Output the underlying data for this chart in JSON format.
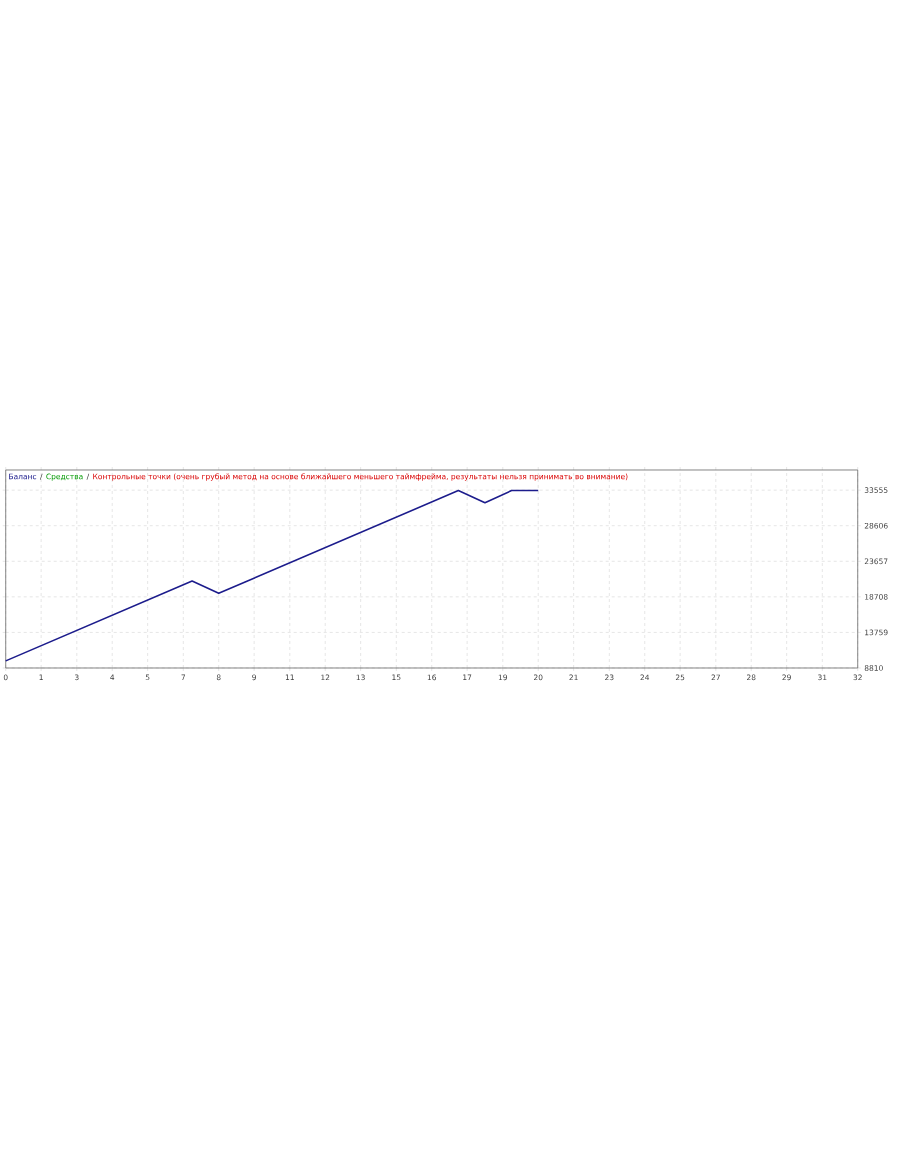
{
  "chart_data": {
    "type": "line",
    "x": [
      0,
      7,
      8,
      17,
      18,
      19,
      20
    ],
    "series": [
      {
        "name": "Баланс",
        "color": "#1c1c8c",
        "values": [
          9800,
          20900,
          19200,
          33500,
          31800,
          33500,
          33500
        ]
      }
    ],
    "annotations": [
      "/",
      "Средства",
      "/",
      "Контрольные точки (очень грубый метод на основе ближайшего меньшего таймфрейма, результаты нельзя принимать во внимание)"
    ],
    "xlim": [
      0,
      32
    ],
    "xticks": [
      0,
      {
        "value": 1.33,
        "label": "1"
      },
      {
        "value": 2.67,
        "label": "3"
      },
      4,
      {
        "value": 5.33,
        "label": "5"
      },
      {
        "value": 6.67,
        "label": "7"
      },
      8,
      {
        "value": 9.33,
        "label": "9"
      },
      {
        "value": 10.67,
        "label": "11"
      },
      12,
      {
        "value": 13.33,
        "label": "13"
      },
      {
        "value": 14.67,
        "label": "15"
      },
      16,
      {
        "value": 17.33,
        "label": "17"
      },
      {
        "value": 18.67,
        "label": "19"
      },
      20,
      {
        "value": 21.33,
        "label": "21"
      },
      {
        "value": 22.67,
        "label": "23"
      },
      24,
      {
        "value": 25.33,
        "label": "25"
      },
      {
        "value": 26.67,
        "label": "27"
      },
      28,
      {
        "value": 29.33,
        "label": "29"
      },
      {
        "value": 30.67,
        "label": "31"
      },
      32
    ],
    "ylim": [
      8810,
      36360
    ],
    "yticks": [
      8810,
      13759,
      18708,
      23657,
      28606,
      33555
    ],
    "grid": true,
    "legend": "top left",
    "line_style": "solid"
  }
}
